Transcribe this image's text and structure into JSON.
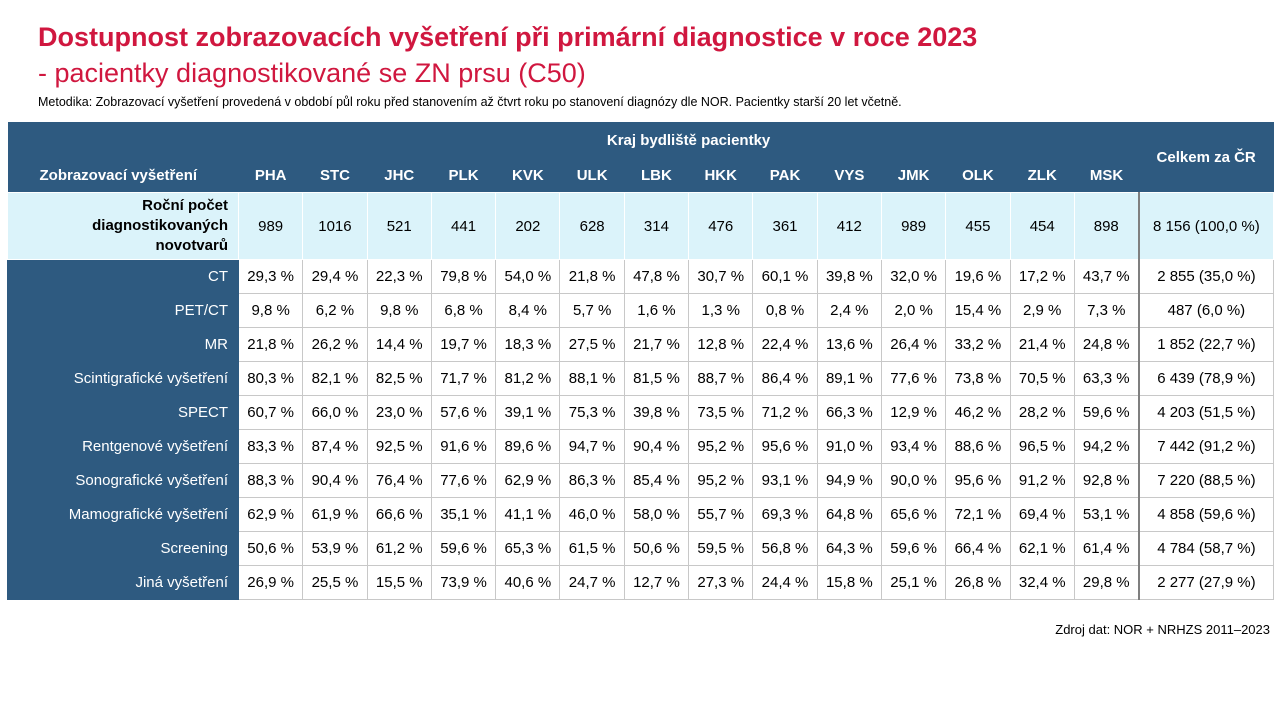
{
  "title_line1": "Dostupnost zobrazovacích vyšetření při primární diagnostice v roce 2023",
  "title_line2": "- pacientky diagnostikované se ZN prsu (C50)",
  "methodology": "Metodika: Zobrazovací vyšetření provedená v období půl roku před stanovením až čtvrt roku po stanovení diagnózy dle NOR. Pacientky starší 20 let včetně.",
  "source": "Zdroj dat: NOR + NRHZS 2011–2023",
  "chart_data": {
    "type": "table",
    "row_header_label": "Zobrazovací vyšetření",
    "group_header": "Kraj bydliště pacientky",
    "columns": [
      "PHA",
      "STC",
      "JHC",
      "PLK",
      "KVK",
      "ULK",
      "LBK",
      "HKK",
      "PAK",
      "VYS",
      "JMK",
      "OLK",
      "ZLK",
      "MSK"
    ],
    "total_header": "Celkem za ČR",
    "count_row": {
      "label_lines": [
        "Roční počet",
        "diagnostikovaných",
        "novotvarů"
      ],
      "values": [
        "989",
        "1016",
        "521",
        "441",
        "202",
        "628",
        "314",
        "476",
        "361",
        "412",
        "989",
        "455",
        "454",
        "898"
      ],
      "total": "8 156 (100,0 %)"
    },
    "rows": [
      {
        "label": "CT",
        "values": [
          "29,3 %",
          "29,4 %",
          "22,3 %",
          "79,8 %",
          "54,0 %",
          "21,8 %",
          "47,8 %",
          "30,7 %",
          "60,1 %",
          "39,8 %",
          "32,0 %",
          "19,6 %",
          "17,2 %",
          "43,7 %"
        ],
        "total": "2 855 (35,0 %)"
      },
      {
        "label": "PET/CT",
        "values": [
          "9,8 %",
          "6,2 %",
          "9,8 %",
          "6,8 %",
          "8,4 %",
          "5,7 %",
          "1,6 %",
          "1,3 %",
          "0,8 %",
          "2,4 %",
          "2,0 %",
          "15,4 %",
          "2,9 %",
          "7,3 %"
        ],
        "total": "487 (6,0 %)"
      },
      {
        "label": "MR",
        "values": [
          "21,8 %",
          "26,2 %",
          "14,4 %",
          "19,7 %",
          "18,3 %",
          "27,5 %",
          "21,7 %",
          "12,8 %",
          "22,4 %",
          "13,6 %",
          "26,4 %",
          "33,2 %",
          "21,4 %",
          "24,8 %"
        ],
        "total": "1 852 (22,7 %)"
      },
      {
        "label": "Scintigrafické vyšetření",
        "values": [
          "80,3 %",
          "82,1 %",
          "82,5 %",
          "71,7 %",
          "81,2 %",
          "88,1 %",
          "81,5 %",
          "88,7 %",
          "86,4 %",
          "89,1 %",
          "77,6 %",
          "73,8 %",
          "70,5 %",
          "63,3 %"
        ],
        "total": "6 439 (78,9 %)"
      },
      {
        "label": "SPECT",
        "values": [
          "60,7 %",
          "66,0 %",
          "23,0 %",
          "57,6 %",
          "39,1 %",
          "75,3 %",
          "39,8 %",
          "73,5 %",
          "71,2 %",
          "66,3 %",
          "12,9 %",
          "46,2 %",
          "28,2 %",
          "59,6 %"
        ],
        "total": "4 203 (51,5 %)"
      },
      {
        "label": "Rentgenové vyšetření",
        "values": [
          "83,3 %",
          "87,4 %",
          "92,5 %",
          "91,6 %",
          "89,6 %",
          "94,7 %",
          "90,4 %",
          "95,2 %",
          "95,6 %",
          "91,0 %",
          "93,4 %",
          "88,6 %",
          "96,5 %",
          "94,2 %"
        ],
        "total": "7 442 (91,2 %)"
      },
      {
        "label": "Sonografické vyšetření",
        "values": [
          "88,3 %",
          "90,4 %",
          "76,4 %",
          "77,6 %",
          "62,9 %",
          "86,3 %",
          "85,4 %",
          "95,2 %",
          "93,1 %",
          "94,9 %",
          "90,0 %",
          "95,6 %",
          "91,2 %",
          "92,8 %"
        ],
        "total": "7 220 (88,5 %)"
      },
      {
        "label": "Mamografické vyšetření",
        "values": [
          "62,9 %",
          "61,9 %",
          "66,6 %",
          "35,1 %",
          "41,1 %",
          "46,0 %",
          "58,0 %",
          "55,7 %",
          "69,3 %",
          "64,8 %",
          "65,6 %",
          "72,1 %",
          "69,4 %",
          "53,1 %"
        ],
        "total": "4 858 (59,6 %)"
      },
      {
        "label": "Screening",
        "values": [
          "50,6 %",
          "53,9 %",
          "61,2 %",
          "59,6 %",
          "65,3 %",
          "61,5 %",
          "50,6 %",
          "59,5 %",
          "56,8 %",
          "64,3 %",
          "59,6 %",
          "66,4 %",
          "62,1 %",
          "61,4 %"
        ],
        "total": "4 784 (58,7 %)"
      },
      {
        "label": "Jiná vyšetření",
        "values": [
          "26,9 %",
          "25,5 %",
          "15,5 %",
          "73,9 %",
          "40,6 %",
          "24,7 %",
          "12,7 %",
          "27,3 %",
          "24,4 %",
          "15,8 %",
          "25,1 %",
          "26,8 %",
          "32,4 %",
          "29,8 %"
        ],
        "total": "2 277 (27,9 %)"
      }
    ]
  },
  "colors": {
    "title": "#d0173f",
    "header_bg": "#2e5a80",
    "count_row_bg": "#dbf3fa",
    "grid": "#c8c8c8"
  }
}
